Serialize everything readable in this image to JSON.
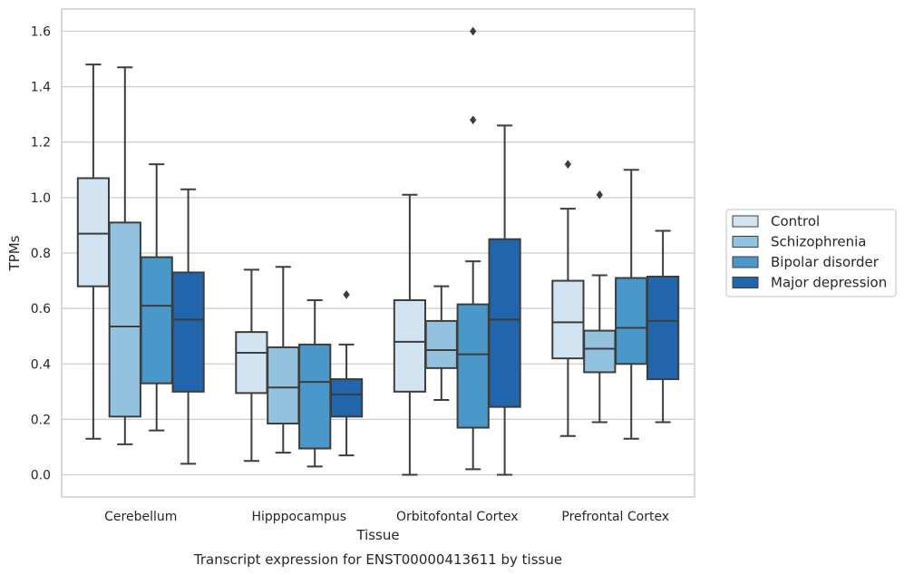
{
  "chart_data": {
    "type": "box",
    "categories": [
      "Cerebellum",
      "Hipppocampus",
      "Orbitofontal Cortex",
      "Prefrontal Cortex"
    ],
    "xlabel": "Tissue",
    "ylabel": "TPMs",
    "caption": "Transcript expression for ENST00000413611 by tissue",
    "ylim": [
      -0.08,
      1.68
    ],
    "yticks": [
      0.0,
      0.2,
      0.4,
      0.6,
      0.8,
      1.0,
      1.2,
      1.4,
      1.6
    ],
    "yticks_labels": [
      "0.0",
      "0.2",
      "0.4",
      "0.6",
      "0.8",
      "1.0",
      "1.2",
      "1.4",
      "1.6"
    ],
    "grid": true,
    "legend_position": "right",
    "series": [
      {
        "name": "Control",
        "color": "#d2e3f2",
        "boxes": [
          {
            "whislo": 0.13,
            "q1": 0.68,
            "med": 0.87,
            "q3": 1.07,
            "whishi": 1.48,
            "fliers": []
          },
          {
            "whislo": 0.05,
            "q1": 0.295,
            "med": 0.44,
            "q3": 0.515,
            "whishi": 0.74,
            "fliers": []
          },
          {
            "whislo": 0.0,
            "q1": 0.3,
            "med": 0.48,
            "q3": 0.63,
            "whishi": 1.01,
            "fliers": []
          },
          {
            "whislo": 0.14,
            "q1": 0.42,
            "med": 0.55,
            "q3": 0.7,
            "whishi": 0.96,
            "fliers": [
              1.12
            ]
          }
        ]
      },
      {
        "name": "Schizophrenia",
        "color": "#93c2de",
        "boxes": [
          {
            "whislo": 0.11,
            "q1": 0.21,
            "med": 0.535,
            "q3": 0.91,
            "whishi": 1.47,
            "fliers": []
          },
          {
            "whislo": 0.08,
            "q1": 0.185,
            "med": 0.315,
            "q3": 0.46,
            "whishi": 0.75,
            "fliers": []
          },
          {
            "whislo": 0.27,
            "q1": 0.385,
            "med": 0.45,
            "q3": 0.555,
            "whishi": 0.68,
            "fliers": []
          },
          {
            "whislo": 0.19,
            "q1": 0.37,
            "med": 0.455,
            "q3": 0.52,
            "whishi": 0.72,
            "fliers": [
              1.01
            ]
          }
        ]
      },
      {
        "name": "Bipolar disorder",
        "color": "#4a98c9",
        "boxes": [
          {
            "whislo": 0.16,
            "q1": 0.33,
            "med": 0.61,
            "q3": 0.785,
            "whishi": 1.12,
            "fliers": []
          },
          {
            "whislo": 0.03,
            "q1": 0.095,
            "med": 0.335,
            "q3": 0.47,
            "whishi": 0.63,
            "fliers": []
          },
          {
            "whislo": 0.02,
            "q1": 0.17,
            "med": 0.435,
            "q3": 0.615,
            "whishi": 0.77,
            "fliers": [
              1.28,
              1.6
            ]
          },
          {
            "whislo": 0.13,
            "q1": 0.4,
            "med": 0.53,
            "q3": 0.71,
            "whishi": 1.1,
            "fliers": []
          }
        ]
      },
      {
        "name": "Major depression",
        "color": "#2166ac",
        "boxes": [
          {
            "whislo": 0.04,
            "q1": 0.3,
            "med": 0.56,
            "q3": 0.73,
            "whishi": 1.03,
            "fliers": []
          },
          {
            "whislo": 0.07,
            "q1": 0.21,
            "med": 0.29,
            "q3": 0.345,
            "whishi": 0.47,
            "fliers": [
              0.65
            ]
          },
          {
            "whislo": 0.0,
            "q1": 0.245,
            "med": 0.56,
            "q3": 0.85,
            "whishi": 1.26,
            "fliers": []
          },
          {
            "whislo": 0.19,
            "q1": 0.345,
            "med": 0.555,
            "q3": 0.715,
            "whishi": 0.88,
            "fliers": []
          }
        ]
      }
    ]
  }
}
